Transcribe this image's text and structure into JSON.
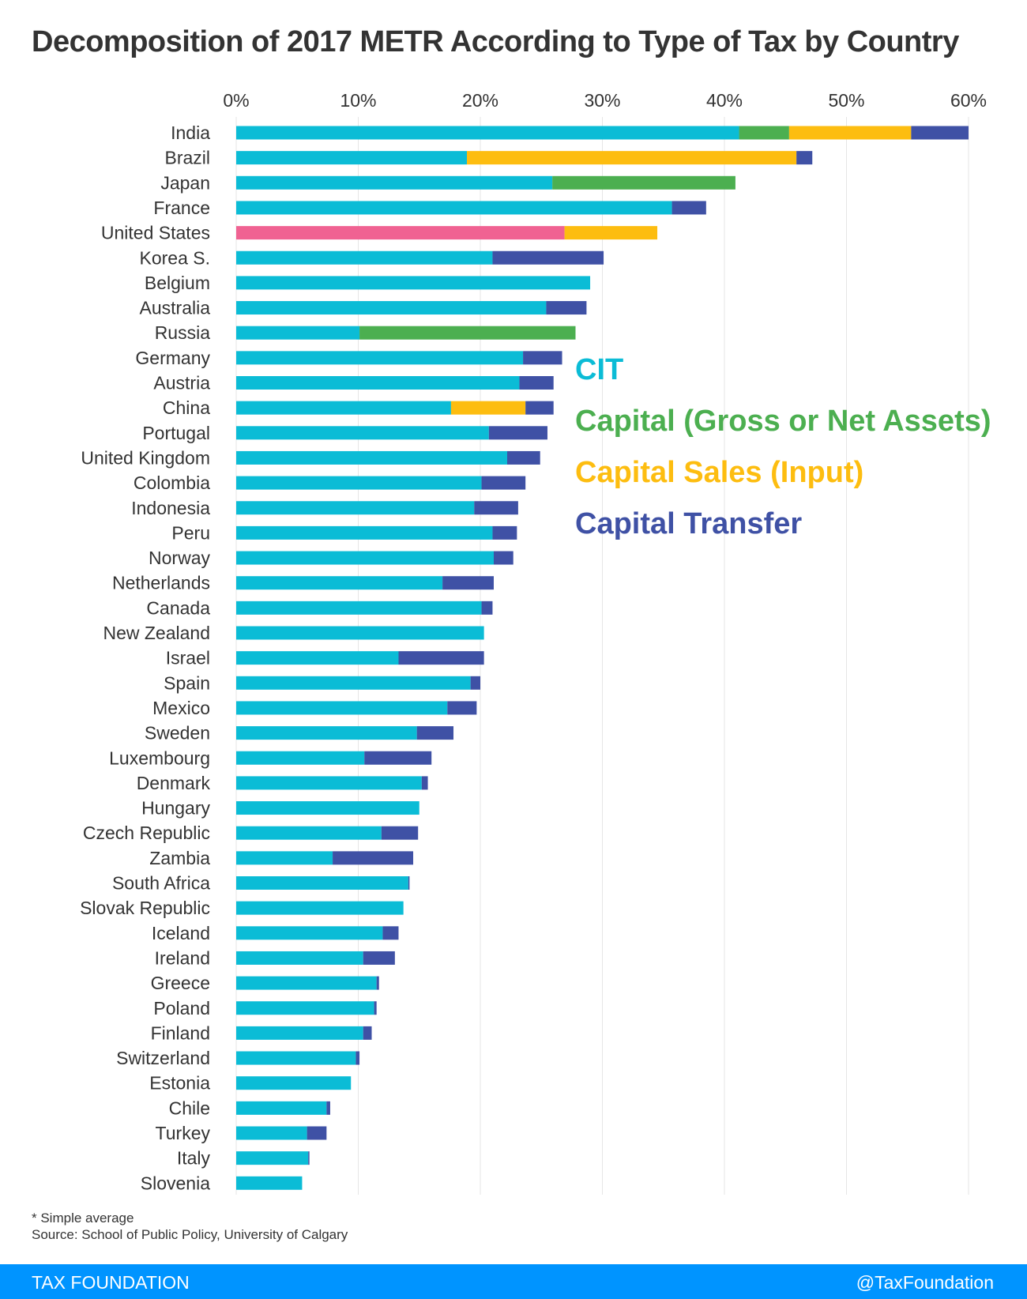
{
  "chart_data": {
    "type": "bar",
    "orientation": "horizontal",
    "stacked": true,
    "title": "Decomposition of 2017 METR According to Type of Tax by Country",
    "xlim": [
      0,
      60
    ],
    "x_ticks": [
      "0%",
      "10%",
      "20%",
      "30%",
      "40%",
      "50%",
      "60%"
    ],
    "grid": true,
    "legend_placement": "right, inside plot area",
    "highlight": {
      "category": "United States",
      "color": "#f06292"
    },
    "categories": [
      "India",
      "Brazil",
      "Japan",
      "France",
      "United States",
      "Korea S.",
      "Belgium",
      "Australia",
      "Russia",
      "Germany",
      "Austria",
      "China",
      "Portugal",
      "United Kingdom",
      "Colombia",
      "Indonesia",
      "Peru",
      "Norway",
      "Netherlands",
      "Canada",
      "New Zealand",
      "Israel",
      "Spain",
      "Mexico",
      "Sweden",
      "Luxembourg",
      "Denmark",
      "Hungary",
      "Czech Republic",
      "Zambia",
      "South Africa",
      "Slovak Republic",
      "Iceland",
      "Ireland",
      "Greece",
      "Poland",
      "Finland",
      "Switzerland",
      "Estonia",
      "Chile",
      "Turkey",
      "Italy",
      "Slovenia"
    ],
    "series": [
      {
        "name": "CIT",
        "color": "#0bbcd6",
        "values": [
          41.2,
          18.9,
          25.9,
          35.7,
          26.9,
          21.0,
          29.0,
          25.4,
          10.1,
          23.5,
          23.2,
          17.6,
          20.7,
          22.2,
          20.1,
          19.5,
          21.0,
          21.1,
          16.9,
          20.1,
          20.3,
          13.3,
          19.2,
          17.3,
          14.8,
          10.5,
          15.2,
          15.0,
          11.9,
          7.9,
          14.1,
          13.7,
          12.0,
          10.4,
          11.5,
          11.3,
          10.4,
          9.8,
          9.4,
          7.4,
          5.8,
          5.9,
          5.4
        ]
      },
      {
        "name": "Capital (Gross or Net Assets)",
        "color": "#4caf50",
        "values": [
          4.1,
          0,
          15.0,
          0,
          0,
          0,
          0,
          0,
          17.7,
          0,
          0,
          0,
          0,
          0,
          0,
          0,
          0,
          0,
          0,
          0,
          0,
          0,
          0,
          0,
          0,
          0,
          0,
          0,
          0,
          0,
          0,
          0,
          0,
          0,
          0,
          0,
          0,
          0,
          0,
          0,
          0,
          0,
          0
        ]
      },
      {
        "name": "Capital Sales (Input)",
        "color": "#fdbd10",
        "values": [
          10.0,
          27.0,
          0,
          0,
          7.6,
          0,
          0,
          0,
          0,
          0,
          0,
          6.1,
          0,
          0,
          0,
          0,
          0,
          0,
          0,
          0,
          0,
          0,
          0,
          0,
          0,
          0,
          0,
          0,
          0,
          0,
          0,
          0,
          0,
          0,
          0,
          0,
          0,
          0,
          0,
          0,
          0,
          0,
          0
        ]
      },
      {
        "name": "Capital Transfer",
        "color": "#3f51a5",
        "values": [
          4.7,
          1.3,
          0,
          2.8,
          0,
          9.1,
          0,
          3.3,
          0,
          3.2,
          2.8,
          2.3,
          4.8,
          2.7,
          3.6,
          3.6,
          2.0,
          1.6,
          4.2,
          0.9,
          0,
          7.0,
          0.8,
          2.4,
          3.0,
          5.5,
          0.5,
          0,
          3.0,
          6.6,
          0.1,
          0,
          1.3,
          2.6,
          0.2,
          0.2,
          0.7,
          0.3,
          0,
          0.3,
          1.6,
          0.1,
          0
        ]
      }
    ]
  },
  "footnote": {
    "line1": "* Simple average",
    "line2": "Source: School of Public Policy, University of Calgary"
  },
  "footer": {
    "brand": "TAX FOUNDATION",
    "handle": "@TaxFoundation",
    "color": "#0094ff"
  }
}
